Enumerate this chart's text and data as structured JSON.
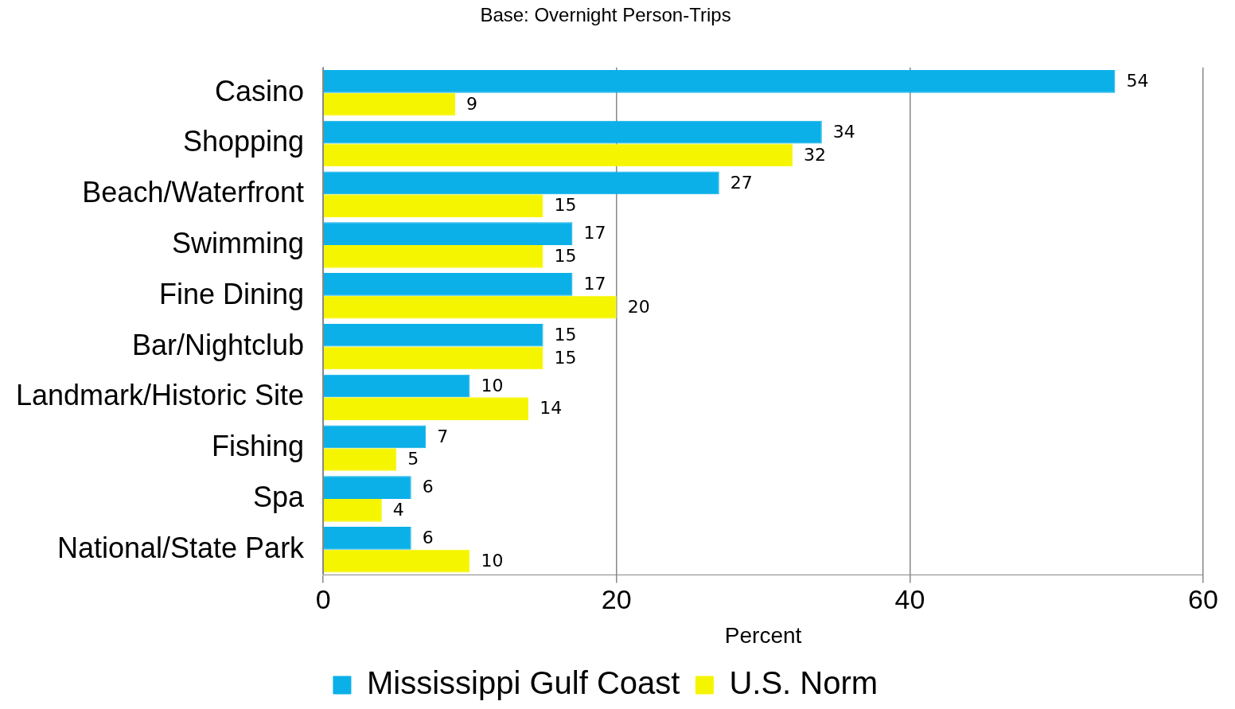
{
  "chart_data": {
    "type": "bar",
    "orientation": "horizontal",
    "title": "Base: Overnight Person-Trips",
    "xlabel": "Percent",
    "categories": [
      "Casino",
      "Shopping",
      "Beach/Waterfront",
      "Swimming",
      "Fine Dining",
      "Bar/Nightclub",
      "Landmark/Historic Site",
      "Fishing",
      "Spa",
      "National/State Park"
    ],
    "series": [
      {
        "name": "Mississippi Gulf Coast",
        "color": "#0bb0e8",
        "values": [
          54,
          34,
          27,
          17,
          17,
          15,
          10,
          7,
          6,
          6
        ]
      },
      {
        "name": "U.S. Norm",
        "color": "#f5f500",
        "values": [
          9,
          32,
          15,
          15,
          20,
          15,
          14,
          5,
          4,
          10
        ]
      }
    ],
    "xlim": [
      0,
      60
    ],
    "xticks": [
      0,
      20,
      40,
      60
    ],
    "grid": "x",
    "legend": "bottom",
    "data_labels": true
  }
}
